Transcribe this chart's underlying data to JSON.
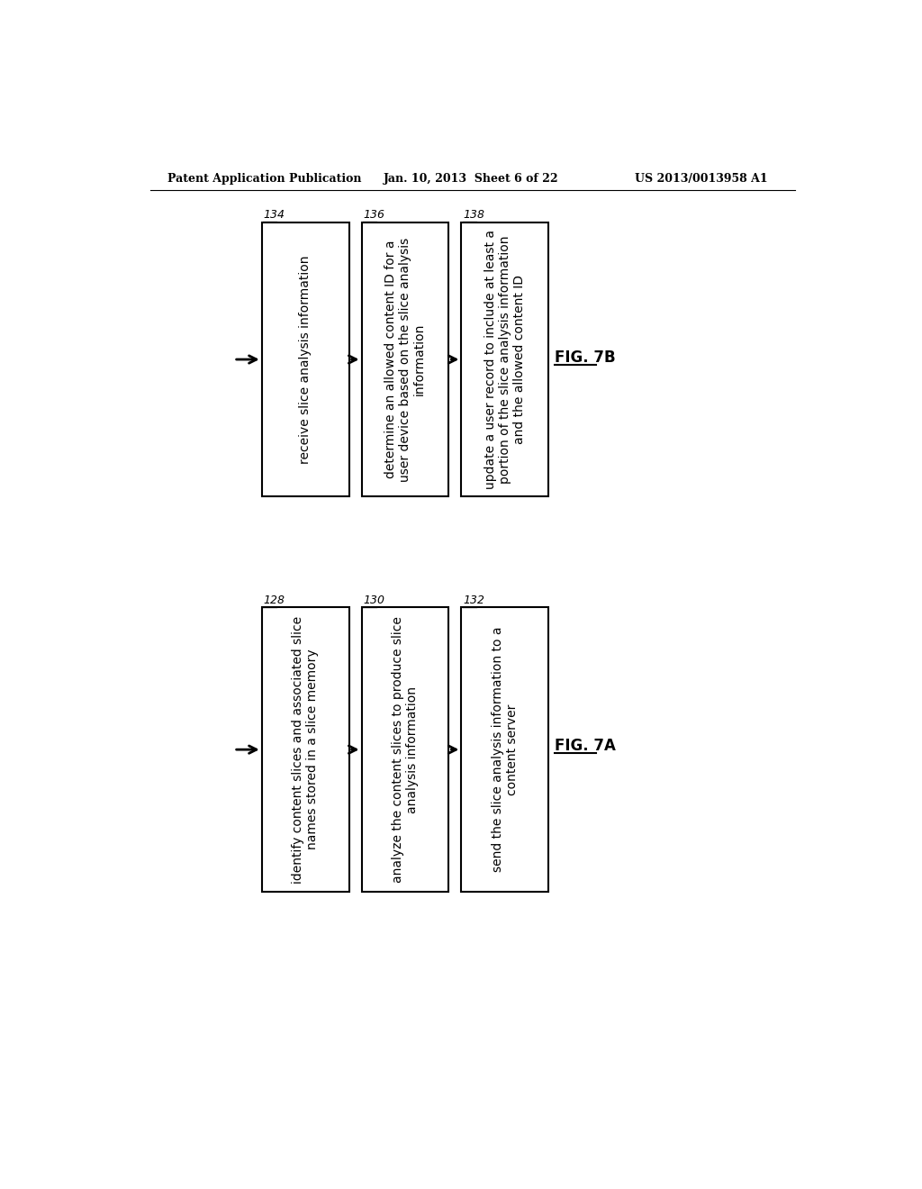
{
  "header_left": "Patent Application Publication",
  "header_center": "Jan. 10, 2013  Sheet 6 of 22",
  "header_right": "US 2013/0013958 A1",
  "fig_b_label": "FIG. 7B",
  "fig_a_label": "FIG. 7A",
  "fig_b": {
    "boxes": [
      {
        "id": "134",
        "text": "receive slice analysis information"
      },
      {
        "id": "136",
        "text": "determine an allowed content ID for a\nuser device based on the slice analysis\ninformation"
      },
      {
        "id": "138",
        "text": "update a user record to include at least a\nportion of the slice analysis information\nand the allowed content ID"
      }
    ]
  },
  "fig_a": {
    "boxes": [
      {
        "id": "128",
        "text": "identify content slices and associated slice\nnames stored in a slice memory"
      },
      {
        "id": "130",
        "text": "analyze the content slices to produce slice\nanalysis information"
      },
      {
        "id": "132",
        "text": "send the slice analysis information to a\ncontent server"
      }
    ]
  },
  "background_color": "#ffffff",
  "box_edge_color": "#000000",
  "text_color": "#000000",
  "arrow_color": "#000000",
  "font_size_box": 10,
  "font_size_header": 9,
  "font_size_label": 12,
  "font_size_id": 9
}
